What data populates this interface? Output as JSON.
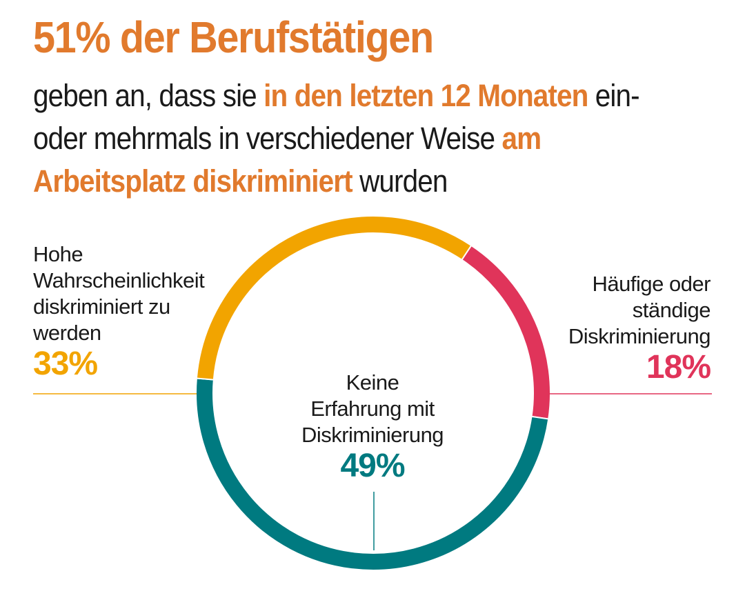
{
  "title": "51% der Berufstätigen",
  "subtitle": [
    {
      "text": "geben an, dass sie ",
      "highlight": false
    },
    {
      "text": "in den letzten 12 Monaten",
      "highlight": true
    },
    {
      "text": " ein- oder mehrmals in verschiedener Weise ",
      "highlight": false
    },
    {
      "text": "am Arbeitsplatz diskriminiert",
      "highlight": true
    },
    {
      "text": " wurden",
      "highlight": false
    }
  ],
  "colors": {
    "accent": "#e17a2d",
    "high_likelihood": "#f2a400",
    "frequent": "#e0345a",
    "none": "#007a80"
  },
  "chart_data": {
    "type": "pie",
    "title": "51% der Berufstätigen",
    "donut": true,
    "slices": [
      {
        "label": "Hohe Wahrscheinlichkeit diskriminiert zu werden",
        "value": 33,
        "display": "33%",
        "color": "#f2a400"
      },
      {
        "label": "Häufige oder ständige Diskriminierung",
        "value": 18,
        "display": "18%",
        "color": "#e0345a"
      },
      {
        "label": "Keine Erfahrung mit Diskriminierung",
        "value": 49,
        "display": "49%",
        "color": "#007a80"
      }
    ]
  },
  "labels": {
    "left": {
      "lines": [
        "Hohe",
        "Wahrscheinlichkeit",
        "diskriminiert zu",
        "werden"
      ],
      "pct": "33%"
    },
    "right": {
      "lines": [
        "Häufige oder",
        "ständige",
        "Diskriminierung"
      ],
      "pct": "18%"
    },
    "center": {
      "lines": [
        "Keine",
        "Erfahrung mit",
        "Diskriminierung"
      ],
      "pct": "49%"
    }
  }
}
